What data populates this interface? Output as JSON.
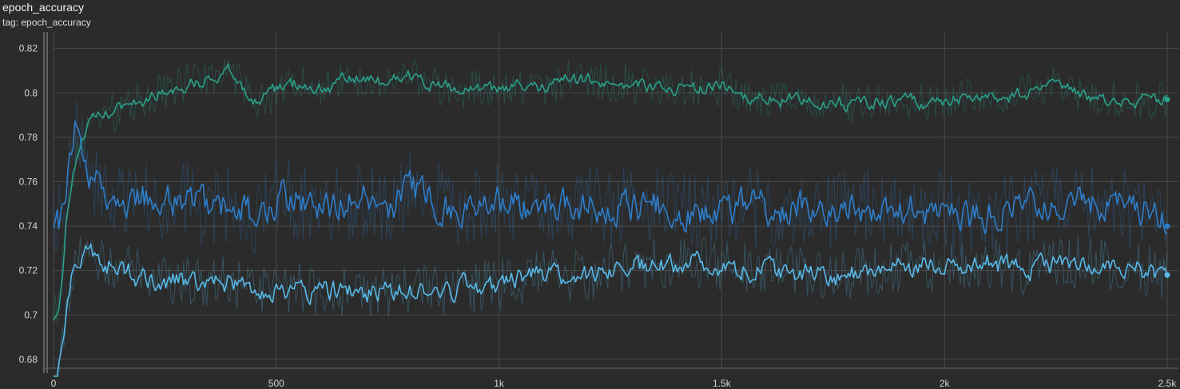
{
  "header": {
    "title": "epoch_accuracy",
    "subtitle": "tag: epoch_accuracy"
  },
  "chart_data": {
    "type": "line",
    "title": "epoch_accuracy",
    "subtitle": "tag: epoch_accuracy",
    "xlabel": "",
    "ylabel": "",
    "xlim": [
      0,
      2500
    ],
    "ylim": [
      0.676,
      0.826
    ],
    "x_ticks": [
      0,
      500,
      1000,
      1500,
      2000,
      2500
    ],
    "x_tick_labels": [
      "0",
      "500",
      "1k",
      "1.5k",
      "2k",
      "2.5k"
    ],
    "y_ticks": [
      0.68,
      0.7,
      0.72,
      0.74,
      0.76,
      0.78,
      0.8,
      0.82
    ],
    "y_tick_labels": [
      "0.68",
      "0.7",
      "0.72",
      "0.74",
      "0.76",
      "0.78",
      "0.8",
      "0.82"
    ],
    "grid": true,
    "colors": {
      "background": "#2b2b2b",
      "grid": "#4a4a4a",
      "axis": "#9a9a9a"
    },
    "series": [
      {
        "color": "#2aa18a",
        "x": [
          0,
          10,
          20,
          30,
          40,
          50,
          60,
          70,
          80,
          100,
          120,
          140,
          160,
          180,
          200,
          250,
          300,
          350,
          400,
          430,
          450,
          480,
          500,
          550,
          600,
          650,
          700,
          750,
          800,
          850,
          900,
          950,
          1000,
          1050,
          1100,
          1150,
          1200,
          1250,
          1300,
          1350,
          1400,
          1450,
          1500,
          1550,
          1600,
          1650,
          1700,
          1750,
          1800,
          1850,
          1900,
          1950,
          2000,
          2050,
          2100,
          2150,
          2200,
          2250,
          2300,
          2350,
          2400,
          2450,
          2500
        ],
        "y": [
          0.7,
          0.702,
          0.72,
          0.745,
          0.76,
          0.77,
          0.777,
          0.78,
          0.785,
          0.789,
          0.79,
          0.792,
          0.794,
          0.796,
          0.797,
          0.801,
          0.804,
          0.806,
          0.81,
          0.802,
          0.795,
          0.798,
          0.802,
          0.804,
          0.802,
          0.805,
          0.806,
          0.805,
          0.808,
          0.803,
          0.801,
          0.802,
          0.801,
          0.803,
          0.802,
          0.806,
          0.806,
          0.805,
          0.804,
          0.803,
          0.802,
          0.802,
          0.803,
          0.797,
          0.797,
          0.797,
          0.796,
          0.796,
          0.795,
          0.796,
          0.797,
          0.796,
          0.797,
          0.798,
          0.798,
          0.798,
          0.801,
          0.803,
          0.799,
          0.797,
          0.796,
          0.797,
          0.797
        ]
      },
      {
        "color": "#2e7ecb",
        "x": [
          0,
          10,
          20,
          30,
          40,
          50,
          60,
          70,
          80,
          100,
          120,
          140,
          160,
          180,
          200,
          250,
          300,
          350,
          400,
          450,
          500,
          550,
          600,
          650,
          700,
          750,
          800,
          850,
          900,
          950,
          1000,
          1050,
          1100,
          1150,
          1200,
          1250,
          1300,
          1350,
          1400,
          1450,
          1500,
          1550,
          1600,
          1650,
          1700,
          1750,
          1800,
          1850,
          1900,
          1950,
          2000,
          2050,
          2100,
          2150,
          2200,
          2250,
          2300,
          2350,
          2400,
          2450,
          2500
        ],
        "y": [
          0.745,
          0.742,
          0.743,
          0.758,
          0.775,
          0.788,
          0.776,
          0.768,
          0.762,
          0.758,
          0.752,
          0.755,
          0.749,
          0.752,
          0.753,
          0.752,
          0.751,
          0.748,
          0.75,
          0.745,
          0.753,
          0.752,
          0.748,
          0.751,
          0.752,
          0.75,
          0.756,
          0.752,
          0.748,
          0.749,
          0.752,
          0.749,
          0.747,
          0.749,
          0.75,
          0.748,
          0.749,
          0.749,
          0.746,
          0.747,
          0.747,
          0.749,
          0.747,
          0.748,
          0.748,
          0.747,
          0.748,
          0.749,
          0.746,
          0.747,
          0.747,
          0.743,
          0.745,
          0.747,
          0.748,
          0.749,
          0.75,
          0.749,
          0.748,
          0.747,
          0.74
        ]
      },
      {
        "color": "#57b9e8",
        "x": [
          0,
          10,
          20,
          30,
          40,
          50,
          60,
          70,
          80,
          100,
          120,
          140,
          160,
          180,
          200,
          250,
          300,
          350,
          400,
          450,
          500,
          550,
          600,
          650,
          700,
          750,
          800,
          850,
          900,
          950,
          1000,
          1050,
          1100,
          1150,
          1200,
          1250,
          1300,
          1350,
          1400,
          1450,
          1500,
          1550,
          1600,
          1650,
          1700,
          1750,
          1800,
          1850,
          1900,
          1950,
          2000,
          2050,
          2100,
          2150,
          2200,
          2250,
          2300,
          2350,
          2400,
          2450,
          2500
        ],
        "y": [
          0.665,
          0.672,
          0.685,
          0.705,
          0.715,
          0.722,
          0.726,
          0.728,
          0.729,
          0.727,
          0.724,
          0.721,
          0.72,
          0.718,
          0.717,
          0.716,
          0.714,
          0.714,
          0.715,
          0.712,
          0.71,
          0.712,
          0.711,
          0.711,
          0.709,
          0.711,
          0.712,
          0.711,
          0.712,
          0.713,
          0.714,
          0.716,
          0.718,
          0.717,
          0.718,
          0.72,
          0.722,
          0.723,
          0.724,
          0.724,
          0.722,
          0.721,
          0.72,
          0.719,
          0.718,
          0.718,
          0.719,
          0.72,
          0.721,
          0.722,
          0.722,
          0.724,
          0.723,
          0.721,
          0.721,
          0.722,
          0.724,
          0.723,
          0.722,
          0.72,
          0.718
        ]
      }
    ]
  }
}
